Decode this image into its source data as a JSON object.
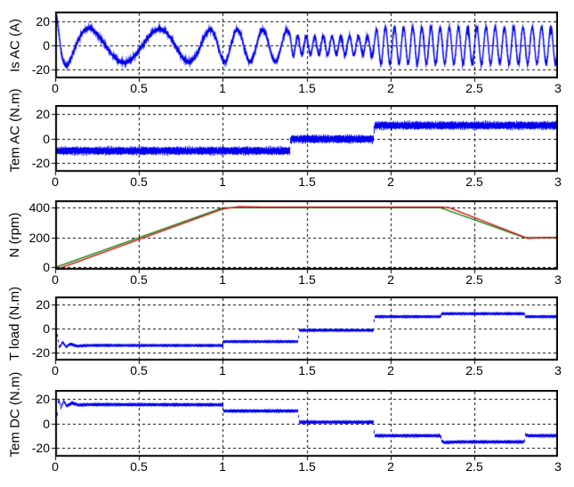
{
  "figure": {
    "background": "#ffffff",
    "frame_color": "#000000",
    "grid_color": "#000000",
    "trace_blue": "#0000ee",
    "trace_green": "#008000",
    "trace_red": "#d40000"
  },
  "axes": {
    "xlim": [
      0,
      3
    ],
    "xticks": [
      0,
      0.5,
      1,
      1.5,
      2,
      2.5,
      3
    ],
    "xtick_labels": [
      "0",
      "0.5",
      "1",
      "1.5",
      "2",
      "2.5",
      "3"
    ],
    "grid": true,
    "grid_style": "dashed"
  },
  "chart_data": [
    {
      "id": "is-ac",
      "type": "line",
      "title": "",
      "xlabel": "",
      "ylabel": "Is AC (A)",
      "ylim": [
        -27,
        28
      ],
      "yticks": [
        20,
        0,
        -20
      ],
      "ytick_labels": [
        "20",
        "0",
        "-20"
      ],
      "grid": true,
      "series": [
        {
          "name": "stator-current",
          "color": "#0000ee",
          "kind": "chirp",
          "fuzz": 2.1,
          "phase0": 1.45,
          "amplitude_points": [
            [
              0,
              1
            ],
            [
              0.004,
              28
            ],
            [
              0.03,
              22
            ],
            [
              0.06,
              17
            ],
            [
              0.12,
              14.5
            ],
            [
              0.6,
              13.5
            ],
            [
              1.38,
              13
            ],
            [
              1.43,
              7.5
            ],
            [
              1.88,
              7.5
            ],
            [
              1.93,
              15
            ],
            [
              3,
              15
            ]
          ],
          "frequency_points": [
            [
              0,
              9
            ],
            [
              0.12,
              3.5
            ],
            [
              0.3,
              2.2
            ],
            [
              0.6,
              2.4
            ],
            [
              0.85,
              3.5
            ],
            [
              1.0,
              6.5
            ],
            [
              1.4,
              6.8
            ],
            [
              1.405,
              20
            ],
            [
              1.9,
              18.5
            ],
            [
              3,
              18
            ]
          ]
        }
      ]
    },
    {
      "id": "tem-ac",
      "type": "line",
      "title": "",
      "xlabel": "",
      "ylabel": "Tem AC (N.m)",
      "ylim": [
        -27,
        27
      ],
      "yticks": [
        20,
        0,
        -20
      ],
      "ytick_labels": [
        "20",
        "0",
        "-20"
      ],
      "grid": true,
      "series": [
        {
          "name": "ac-machine-torque",
          "color": "#0000ee",
          "kind": "band",
          "band": 3.2,
          "points": [
            [
              0,
              -10
            ],
            [
              1.4,
              -10
            ],
            [
              1.405,
              -0.5
            ],
            [
              1.9,
              -0.5
            ],
            [
              1.905,
              10.5
            ],
            [
              3,
              10.5
            ]
          ]
        }
      ]
    },
    {
      "id": "n-rpm",
      "type": "line",
      "title": "",
      "xlabel": "",
      "ylabel": "N (rpm)",
      "ylim": [
        -15,
        450
      ],
      "yticks": [
        400,
        200,
        0
      ],
      "ytick_labels": [
        "400",
        "200",
        "0"
      ],
      "grid": true,
      "series": [
        {
          "name": "speed-reference",
          "color": "#008000",
          "kind": "line",
          "points": [
            [
              0,
              0
            ],
            [
              1,
              400
            ],
            [
              2.3,
              400
            ],
            [
              2.8,
              200
            ],
            [
              3,
              200
            ]
          ]
        },
        {
          "name": "speed-measured",
          "color": "#d40000",
          "kind": "line",
          "points": [
            [
              0,
              -2
            ],
            [
              0.03,
              -4
            ],
            [
              1.0,
              392
            ],
            [
              1.1,
              407
            ],
            [
              1.25,
              404
            ],
            [
              2.3,
              404
            ],
            [
              2.35,
              401
            ],
            [
              2.82,
              194
            ],
            [
              2.92,
              202
            ],
            [
              3,
              201
            ]
          ]
        }
      ]
    },
    {
      "id": "t-load",
      "type": "line",
      "title": "",
      "xlabel": "",
      "ylabel": "T load (N.m)",
      "ylim": [
        -27,
        27
      ],
      "yticks": [
        20,
        0,
        -20
      ],
      "ytick_labels": [
        "20",
        "0",
        "-20"
      ],
      "grid": true,
      "series": [
        {
          "name": "load-torque",
          "color": "#0000ee",
          "kind": "band",
          "band": 1.3,
          "points": [
            [
              0,
              -1
            ],
            [
              0.01,
              -3
            ],
            [
              0.025,
              -16
            ],
            [
              0.045,
              -11.5
            ],
            [
              0.065,
              -15.5
            ],
            [
              0.09,
              -13
            ],
            [
              0.13,
              -14.8
            ],
            [
              0.2,
              -14.2
            ],
            [
              1.0,
              -14.3
            ],
            [
              1.005,
              -11
            ],
            [
              1.45,
              -11
            ],
            [
              1.455,
              -1.5
            ],
            [
              1.9,
              -1.5
            ],
            [
              1.905,
              10
            ],
            [
              2.3,
              10
            ],
            [
              2.305,
              12.5
            ],
            [
              2.8,
              12.5
            ],
            [
              2.805,
              10
            ],
            [
              3,
              10
            ]
          ]
        }
      ]
    },
    {
      "id": "tem-dc",
      "type": "line",
      "title": "",
      "xlabel": "",
      "ylabel": "Tem DC (N.m)",
      "ylim": [
        -27,
        27
      ],
      "yticks": [
        20,
        0,
        -20
      ],
      "ytick_labels": [
        "20",
        "0",
        "-20"
      ],
      "grid": true,
      "series": [
        {
          "name": "dc-machine-torque",
          "color": "#0000ee",
          "kind": "band",
          "band": 1.4,
          "points": [
            [
              0,
              0
            ],
            [
              0.008,
              -2
            ],
            [
              0.02,
              20
            ],
            [
              0.035,
              12.5
            ],
            [
              0.05,
              18
            ],
            [
              0.07,
              14
            ],
            [
              0.1,
              16.5
            ],
            [
              0.14,
              14.8
            ],
            [
              0.2,
              15.2
            ],
            [
              1.0,
              15
            ],
            [
              1.005,
              10
            ],
            [
              1.45,
              10
            ],
            [
              1.455,
              1
            ],
            [
              1.9,
              1
            ],
            [
              1.905,
              -10
            ],
            [
              2.3,
              -10
            ],
            [
              2.305,
              -14
            ],
            [
              2.32,
              -15.5
            ],
            [
              2.4,
              -15
            ],
            [
              2.8,
              -15
            ],
            [
              2.805,
              -9
            ],
            [
              2.82,
              -10
            ],
            [
              3,
              -10
            ]
          ]
        }
      ]
    }
  ]
}
